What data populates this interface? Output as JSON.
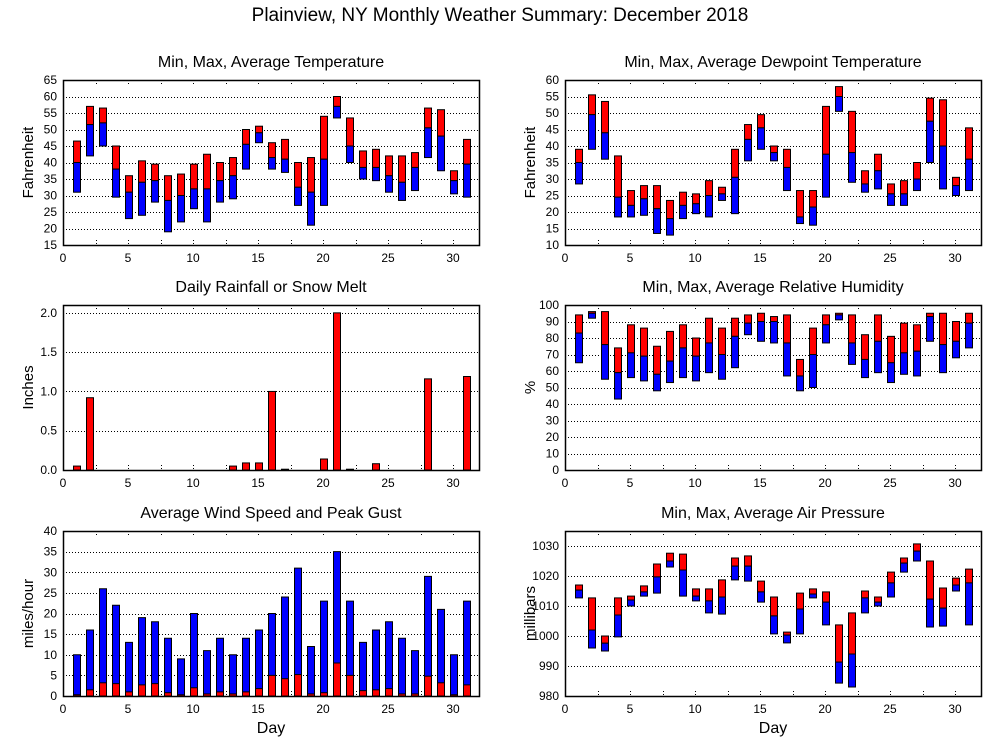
{
  "page_title": "Plainview, NY Monthly Weather Summary: December 2018",
  "colors": {
    "max_segment": "#ff0000",
    "avg_segment": "#0000ff",
    "outline": "#000000"
  },
  "chart_data": [
    {
      "id": "temperature",
      "type": "bar",
      "subtype": "floating-range",
      "title": "Min, Max, Average Temperature",
      "xlabel": "",
      "ylabel": "Fahrenheit",
      "xlim": [
        0,
        32
      ],
      "ylim": [
        15,
        65
      ],
      "xticks": [
        0,
        5,
        10,
        15,
        20,
        25,
        30
      ],
      "yticks": [
        15,
        20,
        25,
        30,
        35,
        40,
        45,
        50,
        55,
        60,
        65
      ],
      "grid": true,
      "x": [
        1,
        2,
        3,
        4,
        5,
        6,
        7,
        8,
        9,
        10,
        11,
        12,
        13,
        14,
        15,
        16,
        17,
        18,
        19,
        20,
        21,
        22,
        23,
        24,
        25,
        26,
        27,
        28,
        29,
        30,
        31
      ],
      "series": [
        {
          "name": "Max",
          "values": [
            46.5,
            57,
            56.5,
            45,
            36,
            40.5,
            39.5,
            36,
            36.5,
            39.5,
            42.5,
            40,
            41.5,
            50,
            51,
            46,
            47,
            40,
            41.5,
            54,
            60,
            53.5,
            43.5,
            44,
            42,
            42,
            43,
            56.5,
            56,
            37.5,
            47
          ]
        },
        {
          "name": "Average",
          "values": [
            40,
            51.5,
            52,
            38,
            31,
            34,
            34.5,
            28.5,
            30,
            32,
            32,
            34.5,
            36,
            45.5,
            49,
            41.5,
            41,
            32.5,
            31,
            41,
            57,
            45,
            38.5,
            38.5,
            36,
            34,
            38.5,
            50.5,
            48,
            34.5,
            39.5
          ]
        },
        {
          "name": "Min",
          "values": [
            31,
            42,
            45,
            29.5,
            23,
            24,
            28,
            19,
            22,
            26,
            22,
            28,
            29,
            38,
            46,
            38,
            37,
            27,
            21,
            27,
            53.5,
            40,
            35,
            34.5,
            31,
            28.5,
            31.5,
            41.5,
            37.5,
            30.5,
            29.5
          ]
        }
      ]
    },
    {
      "id": "dewpoint",
      "type": "bar",
      "subtype": "floating-range",
      "title": "Min, Max, Average Dewpoint Temperature",
      "xlabel": "",
      "ylabel": "Fahrenheit",
      "xlim": [
        0,
        32
      ],
      "ylim": [
        10,
        60
      ],
      "xticks": [
        0,
        5,
        10,
        15,
        20,
        25,
        30
      ],
      "yticks": [
        10,
        15,
        20,
        25,
        30,
        35,
        40,
        45,
        50,
        55,
        60
      ],
      "grid": true,
      "x": [
        1,
        2,
        3,
        4,
        5,
        6,
        7,
        8,
        9,
        10,
        11,
        12,
        13,
        14,
        15,
        16,
        17,
        18,
        19,
        20,
        21,
        22,
        23,
        24,
        25,
        26,
        27,
        28,
        29,
        30,
        31
      ],
      "series": [
        {
          "name": "Max",
          "values": [
            39,
            55.5,
            53.5,
            37,
            26.5,
            28,
            28,
            23.5,
            26,
            25.5,
            29.5,
            27.5,
            39,
            46.5,
            49.5,
            40,
            39,
            26.5,
            26.5,
            52,
            58,
            50.5,
            32.5,
            37.5,
            28.5,
            29.5,
            35,
            54.5,
            54,
            30.5,
            45.5
          ]
        },
        {
          "name": "Average",
          "values": [
            35,
            49.5,
            44,
            24.5,
            22,
            24,
            21,
            18,
            22,
            22.5,
            25,
            25.5,
            30.5,
            42,
            45.5,
            38,
            33.5,
            18.5,
            21.5,
            37.5,
            55,
            38,
            28.5,
            32.5,
            25.5,
            25.5,
            30,
            47.5,
            40,
            28,
            36
          ]
        },
        {
          "name": "Min",
          "values": [
            28.5,
            39,
            36,
            18.5,
            18.5,
            19,
            13.5,
            13,
            18,
            19.5,
            18.5,
            23.5,
            19.5,
            35.5,
            39,
            35.5,
            26.5,
            16.5,
            16,
            24.5,
            50.5,
            29,
            26,
            27,
            22,
            22,
            26.5,
            35,
            27,
            25,
            26.5
          ]
        }
      ]
    },
    {
      "id": "rainfall",
      "type": "bar",
      "title": "Daily Rainfall or Snow Melt",
      "xlabel": "",
      "ylabel": "Inches",
      "xlim": [
        0,
        32
      ],
      "ylim": [
        0,
        2.1
      ],
      "xticks": [
        0,
        5,
        10,
        15,
        20,
        25,
        30
      ],
      "yticks": [
        "0.0",
        "0.5",
        "1.0",
        "1.5",
        "2.0"
      ],
      "grid": true,
      "x": [
        1,
        2,
        3,
        4,
        5,
        6,
        7,
        8,
        9,
        10,
        11,
        12,
        13,
        14,
        15,
        16,
        17,
        18,
        19,
        20,
        21,
        22,
        23,
        24,
        25,
        26,
        27,
        28,
        29,
        30,
        31
      ],
      "series": [
        {
          "name": "Rainfall",
          "values": [
            0.05,
            0.92,
            0,
            0,
            0,
            0,
            0,
            0,
            0,
            0,
            0,
            0,
            0.05,
            0.09,
            0.09,
            1.0,
            0.01,
            0,
            0,
            0.14,
            2.0,
            0.01,
            0,
            0.08,
            0,
            0,
            0,
            1.16,
            0,
            0,
            1.19
          ]
        }
      ]
    },
    {
      "id": "humidity",
      "type": "bar",
      "subtype": "floating-range",
      "title": "Min, Max, Average Relative Humidity",
      "xlabel": "",
      "ylabel": "%",
      "xlim": [
        0,
        32
      ],
      "ylim": [
        0,
        100
      ],
      "xticks": [
        0,
        5,
        10,
        15,
        20,
        25,
        30
      ],
      "yticks": [
        0,
        10,
        20,
        30,
        40,
        50,
        60,
        70,
        80,
        90,
        100
      ],
      "grid": true,
      "x": [
        1,
        2,
        3,
        4,
        5,
        6,
        7,
        8,
        9,
        10,
        11,
        12,
        13,
        14,
        15,
        16,
        17,
        18,
        19,
        20,
        21,
        22,
        23,
        24,
        25,
        26,
        27,
        28,
        29,
        30,
        31
      ],
      "series": [
        {
          "name": "Max",
          "values": [
            94,
            96,
            96,
            74,
            88,
            86,
            75,
            84,
            88,
            80,
            92,
            86,
            92,
            94,
            95,
            93,
            94,
            67,
            86,
            94,
            95,
            94,
            82,
            94,
            81,
            89,
            88,
            95,
            95,
            90,
            95
          ]
        },
        {
          "name": "Average",
          "values": [
            83,
            95,
            76,
            59,
            71,
            69,
            58,
            66,
            74,
            69,
            77,
            70,
            81,
            89,
            90,
            90,
            77,
            57,
            70,
            88,
            94,
            77,
            67,
            78,
            65,
            71,
            72,
            93,
            76,
            78,
            89
          ]
        },
        {
          "name": "Min",
          "values": [
            65,
            92,
            55,
            43,
            56,
            54,
            48,
            53,
            56,
            54,
            59,
            55,
            62,
            82,
            78,
            77,
            57,
            48,
            50,
            77,
            91,
            64,
            56,
            59,
            53,
            58,
            57,
            78,
            59,
            68,
            74
          ]
        }
      ]
    },
    {
      "id": "wind",
      "type": "bar",
      "subtype": "overlaid",
      "title": "Average Wind Speed and Peak Gust",
      "xlabel": "Day",
      "ylabel": "miles/hour",
      "xlim": [
        0,
        32
      ],
      "ylim": [
        0,
        40
      ],
      "xticks": [
        0,
        5,
        10,
        15,
        20,
        25,
        30
      ],
      "yticks": [
        0,
        5,
        10,
        15,
        20,
        25,
        30,
        35,
        40
      ],
      "grid": true,
      "x": [
        1,
        2,
        3,
        4,
        5,
        6,
        7,
        8,
        9,
        10,
        11,
        12,
        13,
        14,
        15,
        16,
        17,
        18,
        19,
        20,
        21,
        22,
        23,
        24,
        25,
        26,
        27,
        28,
        29,
        30,
        31
      ],
      "series": [
        {
          "name": "Peak Gust",
          "values": [
            10,
            16,
            26,
            22,
            13,
            19,
            18,
            14,
            9,
            20,
            11,
            14,
            10,
            14,
            16,
            20,
            24,
            31,
            12,
            23,
            35,
            23,
            13,
            16,
            18,
            14,
            11,
            29,
            21,
            10,
            23
          ]
        },
        {
          "name": "Average Wind Speed",
          "values": [
            0.3,
            1.5,
            3.2,
            3,
            1,
            2.7,
            3,
            0.8,
            0.3,
            2,
            0.5,
            1,
            0.5,
            1,
            1.8,
            5,
            4.2,
            5.2,
            0.5,
            0.8,
            8,
            5,
            1.3,
            1.5,
            1.8,
            0.5,
            0.5,
            4.8,
            3.2,
            0.3,
            2.7
          ]
        }
      ]
    },
    {
      "id": "pressure",
      "type": "bar",
      "subtype": "floating-range",
      "title": "Min, Max, Average Air Pressure",
      "xlabel": "Day",
      "ylabel": "millibars",
      "xlim": [
        0,
        32
      ],
      "ylim": [
        980,
        1035
      ],
      "xticks": [
        0,
        5,
        10,
        15,
        20,
        25,
        30
      ],
      "yticks": [
        980,
        990,
        1000,
        1010,
        1020,
        1030
      ],
      "grid": true,
      "x": [
        1,
        2,
        3,
        4,
        5,
        6,
        7,
        8,
        9,
        10,
        11,
        12,
        13,
        14,
        15,
        16,
        17,
        18,
        19,
        20,
        21,
        22,
        23,
        24,
        25,
        26,
        27,
        28,
        29,
        30,
        31
      ],
      "series": [
        {
          "name": "Max",
          "values": [
            1017,
            1012.7,
            1000,
            1012.7,
            1013.3,
            1016.7,
            1024,
            1027.6,
            1027.3,
            1015.7,
            1015.7,
            1018.7,
            1026,
            1026.7,
            1018.3,
            1013,
            1001.3,
            1014.3,
            1015.7,
            1014.7,
            1003.7,
            1007.7,
            1015,
            1013,
            1021.3,
            1026,
            1030.7,
            1025,
            1016,
            1019.3,
            1022.3
          ]
        },
        {
          "name": "Average",
          "values": [
            1015.3,
            1002,
            997.6,
            1007,
            1012,
            1014.7,
            1019.7,
            1025,
            1022,
            1013.3,
            1011.7,
            1013,
            1023.3,
            1023.3,
            1014.7,
            1006.7,
            1000.3,
            1009,
            1014,
            1011.3,
            991.3,
            994,
            1012.7,
            1011.3,
            1017.7,
            1024.3,
            1028.3,
            1012.3,
            1009.3,
            1017,
            1017.7
          ]
        },
        {
          "name": "Min",
          "values": [
            1012.7,
            996,
            995,
            999.7,
            1010,
            1013.3,
            1014.3,
            1023,
            1013.3,
            1011.7,
            1007.7,
            1007.3,
            1018.7,
            1018.3,
            1011.3,
            1000.7,
            997.7,
            1000.7,
            1012.7,
            1003.7,
            984.3,
            983,
            1007.7,
            1010,
            1013,
            1021.3,
            1025,
            1003,
            1003.3,
            1015,
            1003.7
          ]
        }
      ]
    }
  ]
}
